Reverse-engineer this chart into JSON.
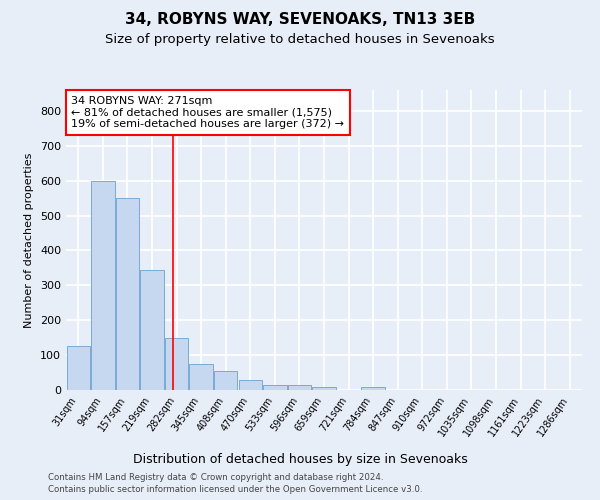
{
  "title1": "34, ROBYNS WAY, SEVENOAKS, TN13 3EB",
  "title2": "Size of property relative to detached houses in Sevenoaks",
  "xlabel": "Distribution of detached houses by size in Sevenoaks",
  "ylabel": "Number of detached properties",
  "categories": [
    "31sqm",
    "94sqm",
    "157sqm",
    "219sqm",
    "282sqm",
    "345sqm",
    "408sqm",
    "470sqm",
    "533sqm",
    "596sqm",
    "659sqm",
    "721sqm",
    "784sqm",
    "847sqm",
    "910sqm",
    "972sqm",
    "1035sqm",
    "1098sqm",
    "1161sqm",
    "1223sqm",
    "1286sqm"
  ],
  "values": [
    125,
    600,
    550,
    345,
    148,
    75,
    55,
    30,
    15,
    13,
    10,
    0,
    8,
    0,
    0,
    0,
    0,
    0,
    0,
    0,
    0
  ],
  "bar_color": "#c5d8f0",
  "bar_edge_color": "#7aaad4",
  "vline_x_index": 3.85,
  "vline_color": "red",
  "annotation_text": "34 ROBYNS WAY: 271sqm\n← 81% of detached houses are smaller (1,575)\n19% of semi-detached houses are larger (372) →",
  "annotation_box_color": "white",
  "annotation_box_edge_color": "red",
  "ylim": [
    0,
    860
  ],
  "yticks": [
    0,
    100,
    200,
    300,
    400,
    500,
    600,
    700,
    800
  ],
  "footer1": "Contains HM Land Registry data © Crown copyright and database right 2024.",
  "footer2": "Contains public sector information licensed under the Open Government Licence v3.0.",
  "bg_color": "#e8eef8",
  "plot_bg_color": "#e8eef8",
  "grid_color": "white",
  "title1_fontsize": 11,
  "title2_fontsize": 9.5,
  "xlabel_fontsize": 9,
  "ylabel_fontsize": 8
}
